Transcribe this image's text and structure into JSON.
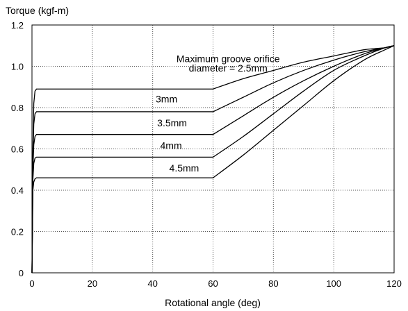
{
  "chart_data": {
    "type": "line",
    "title": "",
    "xlabel": "Rotational angle (deg)",
    "ylabel": "Torque (kgf-m)",
    "xlim": [
      0,
      120
    ],
    "ylim": [
      0,
      1.2
    ],
    "xticks": [
      "0",
      "20",
      "40",
      "60",
      "80",
      "100",
      "120"
    ],
    "yticks": [
      "0",
      "0.2",
      "0.4",
      "0.6",
      "0.8",
      "1.0",
      "1.2"
    ],
    "grid": "dotted",
    "series": [
      {
        "name": "Maximum groove orifice diameter = 2.5mm",
        "x": [
          0,
          0.3,
          0.6,
          1,
          1.5,
          60,
          70,
          80,
          90,
          100,
          110,
          117,
          120
        ],
        "y": [
          0,
          0.6,
          0.82,
          0.88,
          0.89,
          0.89,
          0.94,
          0.98,
          1.02,
          1.05,
          1.08,
          1.09,
          1.1
        ]
      },
      {
        "name": "3mm",
        "x": [
          0,
          0.3,
          0.6,
          1,
          1.5,
          60,
          70,
          80,
          90,
          100,
          110,
          117,
          120
        ],
        "y": [
          0,
          0.55,
          0.72,
          0.77,
          0.78,
          0.78,
          0.85,
          0.92,
          0.98,
          1.03,
          1.07,
          1.09,
          1.1
        ]
      },
      {
        "name": "3.5mm",
        "x": [
          0,
          0.3,
          0.6,
          1,
          1.5,
          60,
          70,
          80,
          90,
          100,
          110,
          117,
          120
        ],
        "y": [
          0,
          0.5,
          0.62,
          0.66,
          0.67,
          0.67,
          0.76,
          0.85,
          0.93,
          1.0,
          1.06,
          1.09,
          1.1
        ]
      },
      {
        "name": "4mm",
        "x": [
          0,
          0.3,
          0.6,
          1,
          1.5,
          60,
          70,
          80,
          90,
          100,
          110,
          117,
          120
        ],
        "y": [
          0,
          0.45,
          0.53,
          0.555,
          0.56,
          0.56,
          0.66,
          0.77,
          0.88,
          0.98,
          1.05,
          1.09,
          1.1
        ]
      },
      {
        "name": "4.5mm",
        "x": [
          0,
          0.3,
          0.6,
          1,
          1.5,
          60,
          70,
          80,
          90,
          100,
          110,
          117,
          120
        ],
        "y": [
          0,
          0.4,
          0.44,
          0.455,
          0.46,
          0.46,
          0.57,
          0.69,
          0.81,
          0.93,
          1.03,
          1.08,
          1.1
        ]
      }
    ],
    "annotations": [
      {
        "text": "Maximum groove orifice",
        "x": 65,
        "y": 1.02,
        "anchor": "middle"
      },
      {
        "text": "diameter = 2.5mm",
        "x": 65,
        "y": 0.975,
        "anchor": "middle"
      },
      {
        "text": "3mm",
        "x": 41,
        "y": 0.825,
        "anchor": "start"
      },
      {
        "text": "3.5mm",
        "x": 41.5,
        "y": 0.71,
        "anchor": "start"
      },
      {
        "text": "4mm",
        "x": 42.5,
        "y": 0.6,
        "anchor": "start"
      },
      {
        "text": "4.5mm",
        "x": 45.5,
        "y": 0.49,
        "anchor": "start"
      }
    ]
  }
}
